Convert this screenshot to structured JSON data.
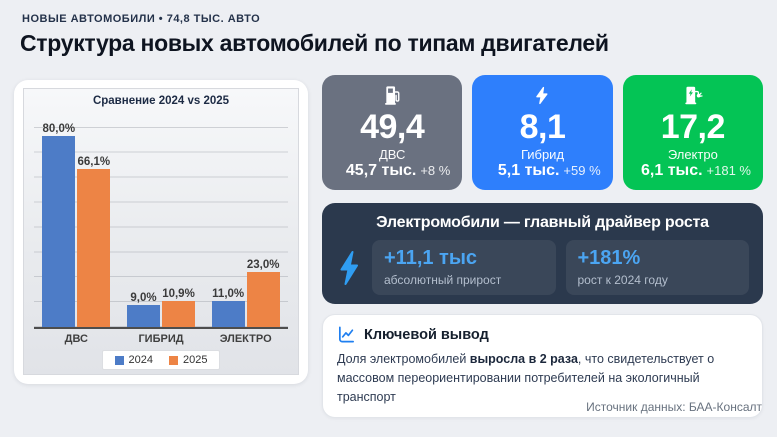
{
  "header": {
    "eyebrow": "НОВЫЕ АВТОМОБИЛИ • 74,8 ТЫС. АВТО",
    "title": "Структура новых автомобилей по типам двигателей"
  },
  "chart_data": {
    "type": "bar",
    "title": "Сравнение 2024 vs 2025",
    "categories": [
      "ДВС",
      "ГИБРИД",
      "ЭЛЕКТРО"
    ],
    "series": [
      {
        "name": "2024",
        "color": "#4d7cc7",
        "values": [
          80.0,
          9.0,
          11.0
        ],
        "labels": [
          "80,0%",
          "9,0%",
          "11,0%"
        ]
      },
      {
        "name": "2025",
        "color": "#ed8445",
        "values": [
          66.1,
          10.9,
          23.0
        ],
        "labels": [
          "66,1%",
          "10,9%",
          "23,0%"
        ]
      }
    ],
    "ylim": [
      0,
      90
    ],
    "unit": "%",
    "grid": true,
    "legend_position": "bottom"
  },
  "stat_cards": [
    {
      "icon": "fuel-pump",
      "color": "#6a7180",
      "value": "49,4",
      "label": "ДВС",
      "abs": "45,7 тыс.",
      "delta": "+8 %"
    },
    {
      "icon": "lightning",
      "color": "#2e7ffc",
      "value": "8,1",
      "label": "Гибрид",
      "abs": "5,1 тыс.",
      "delta": "+59 %"
    },
    {
      "icon": "ev-charger",
      "color": "#04c455",
      "value": "17,2",
      "label": "Электро",
      "abs": "6,1 тыс.",
      "delta": "+181 %"
    }
  ],
  "driver_card": {
    "bg": "#2b394d",
    "accent": "#2f9df2",
    "title": "Электромобили — главный драйвер роста",
    "metrics": [
      {
        "value": "+11,1 тыс",
        "label": "абсолютный прирост"
      },
      {
        "value": "+181%",
        "label": "рост к 2024 году"
      }
    ]
  },
  "insight_card": {
    "title": "Ключевой вывод",
    "text_pre": "Доля электромобилей ",
    "text_bold": "выросла в 2 раза",
    "text_post": ", что свидетельствует о массовом переориентировании потребителей на экологичный транспорт"
  },
  "footer": {
    "source": "Источник данных: БАА-Консалт"
  },
  "colors": {
    "page_bg": "#edeff3",
    "bar_2024": "#4d7cc7",
    "bar_2025": "#ed8445",
    "insight_icon_blue": "#1f7ff0"
  }
}
